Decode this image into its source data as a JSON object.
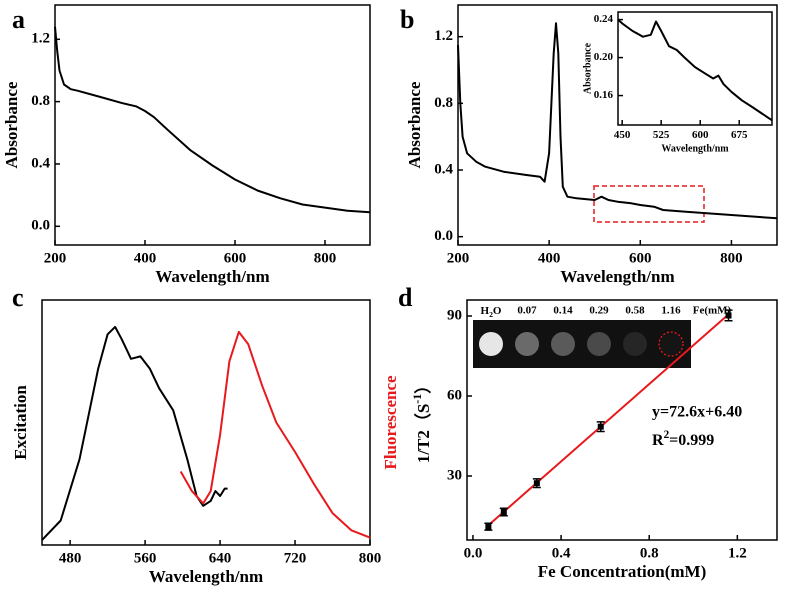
{
  "chart_data": [
    {
      "type": "line",
      "panel": "a",
      "xlabel": "Wavelength/nm",
      "ylabel": "Absorbance",
      "xlim": [
        200,
        900
      ],
      "ylim": [
        -0.12,
        1.42
      ],
      "xticks": [
        200,
        400,
        600,
        800
      ],
      "yticks": [
        {
          "value": 0,
          "label": "0.0"
        },
        0.4,
        0.8,
        1.2
      ],
      "series": [
        {
          "color": "#000000",
          "x": [
            200,
            205,
            210,
            220,
            235,
            250,
            300,
            350,
            380,
            400,
            420,
            450,
            500,
            550,
            600,
            650,
            700,
            750,
            800,
            850,
            900
          ],
          "values": [
            1.28,
            1.12,
            1.0,
            0.91,
            0.88,
            0.87,
            0.83,
            0.79,
            0.77,
            0.74,
            0.7,
            0.62,
            0.49,
            0.39,
            0.3,
            0.23,
            0.18,
            0.14,
            0.12,
            0.1,
            0.09
          ]
        }
      ]
    },
    {
      "type": "line",
      "panel": "b",
      "xlabel": "Wavelength/nm",
      "ylabel": "Absorbance",
      "xlim": [
        200,
        900
      ],
      "ylim": [
        -0.05,
        1.39
      ],
      "xticks": [
        200,
        400,
        600,
        800
      ],
      "yticks": [
        {
          "value": 0,
          "label": "0.0"
        },
        0.4,
        0.8,
        1.2
      ],
      "series": [
        {
          "color": "#000000",
          "x": [
            200,
            205,
            210,
            220,
            240,
            260,
            300,
            350,
            380,
            390,
            400,
            405,
            410,
            415,
            420,
            425,
            430,
            440,
            460,
            500,
            515,
            530,
            550,
            580,
            600,
            630,
            650,
            700,
            800,
            900
          ],
          "values": [
            1.15,
            0.8,
            0.6,
            0.5,
            0.45,
            0.42,
            0.39,
            0.37,
            0.36,
            0.33,
            0.5,
            0.8,
            1.1,
            1.28,
            1.1,
            0.6,
            0.3,
            0.24,
            0.23,
            0.22,
            0.24,
            0.22,
            0.21,
            0.2,
            0.19,
            0.18,
            0.16,
            0.15,
            0.13,
            0.11
          ]
        }
      ]
    },
    {
      "type": "line",
      "xlabel": "Wavelength/nm",
      "ylabel": "Absorbance",
      "xlim": [
        442,
        738
      ],
      "ylim": [
        0.129,
        0.248
      ],
      "xticks": [
        450,
        525,
        600,
        675
      ],
      "yticks": [
        0.16,
        {
          "value": 0.2,
          "label": "0.20"
        },
        0.24
      ],
      "series": [
        {
          "color": "#000000",
          "x": [
            442,
            450,
            470,
            490,
            505,
            515,
            525,
            540,
            555,
            570,
            590,
            610,
            625,
            635,
            645,
            660,
            680,
            700,
            738
          ],
          "values": [
            0.24,
            0.236,
            0.228,
            0.222,
            0.224,
            0.238,
            0.228,
            0.212,
            0.208,
            0.2,
            0.19,
            0.183,
            0.178,
            0.181,
            0.172,
            0.164,
            0.155,
            0.148,
            0.134
          ]
        }
      ]
    },
    {
      "type": "line",
      "panel": "c",
      "xlabel": "Wavelength/nm",
      "ylabel": "Excitation",
      "y2label": "Fluorescence",
      "xlim": [
        450,
        800
      ],
      "ylim": [
        0,
        1
      ],
      "y2lim": [
        0,
        1
      ],
      "xticks": [
        480,
        560,
        640,
        720,
        800
      ],
      "series": [
        {
          "color": "#000000",
          "x": [
            450,
            470,
            490,
            510,
            520,
            528,
            535,
            545,
            555,
            565,
            575,
            590,
            605,
            615,
            622,
            630,
            635,
            640,
            645,
            648
          ],
          "values": [
            0.02,
            0.1,
            0.35,
            0.72,
            0.86,
            0.89,
            0.84,
            0.76,
            0.77,
            0.72,
            0.64,
            0.55,
            0.35,
            0.2,
            0.16,
            0.18,
            0.22,
            0.2,
            0.23,
            0.23
          ]
        },
        {
          "color": "#e8191c",
          "axis": "y2",
          "x": [
            598,
            610,
            622,
            630,
            640,
            650,
            660,
            670,
            685,
            700,
            720,
            740,
            760,
            780,
            800
          ],
          "values": [
            0.3,
            0.22,
            0.17,
            0.22,
            0.45,
            0.75,
            0.87,
            0.82,
            0.65,
            0.5,
            0.38,
            0.25,
            0.13,
            0.06,
            0.03
          ]
        }
      ]
    },
    {
      "type": "scatter",
      "panel": "d",
      "xlabel": "Fe Concentration(mM)",
      "ylabel": [
        "1/T2（S",
        "-1",
        "）"
      ],
      "xlim": [
        -0.027,
        1.38
      ],
      "ylim": [
        6,
        96
      ],
      "xticks": [
        {
          "value": 0,
          "label": "0.0"
        },
        0.4,
        0.8,
        1.2
      ],
      "yticks": [
        30,
        60,
        90
      ],
      "color": "#000000",
      "x": [
        0.07,
        0.14,
        0.29,
        0.58,
        1.16
      ],
      "values": [
        11,
        16.5,
        27.3,
        48.5,
        90.2
      ],
      "errors": [
        1.3,
        1.4,
        1.6,
        1.8,
        2
      ],
      "fit": {
        "color": "#e8191c",
        "x": [
          0.07,
          1.16
        ],
        "values": [
          11.5,
          90.6
        ]
      },
      "equation": "y=72.6x+6.40",
      "r2": [
        "R",
        "2",
        "=0.999"
      ],
      "image_labels": [
        [
          "H",
          "2",
          "O"
        ],
        "0.07",
        "0.14",
        "0.29",
        "0.58",
        "1.16",
        "Fe(mM)"
      ]
    }
  ]
}
